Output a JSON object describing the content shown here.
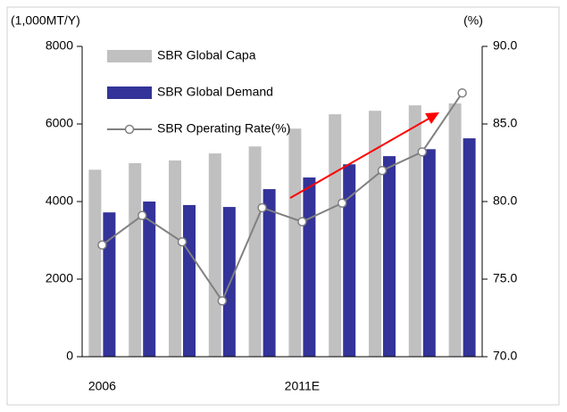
{
  "chart_data": {
    "type": "bar_line",
    "ylabel": "(1,000MT/Y)",
    "y2label": "(%)",
    "categories": [
      "2006",
      null,
      null,
      null,
      null,
      "2011E",
      null,
      null,
      null,
      null
    ],
    "series": [
      {
        "name": "SBR Global Capa",
        "type": "bar",
        "color": "#c0c0c0",
        "values": [
          4820,
          4990,
          5060,
          5240,
          5420,
          5880,
          6250,
          6340,
          6480,
          6530
        ]
      },
      {
        "name": "SBR Global Demand",
        "type": "bar",
        "color": "#333399",
        "values": [
          3720,
          4000,
          3910,
          3860,
          4320,
          4620,
          4960,
          5170,
          5350,
          5630
        ]
      },
      {
        "name": "SBR Operating Rate(%)",
        "type": "line",
        "axis": "y2",
        "color": "#808080",
        "values": [
          77.2,
          79.1,
          77.4,
          73.6,
          79.6,
          78.7,
          79.9,
          82.0,
          83.2,
          87.0
        ]
      }
    ],
    "ylim": [
      0,
      8000
    ],
    "yticks": [
      0,
      2000,
      4000,
      6000,
      8000
    ],
    "y2lim": [
      70,
      90
    ],
    "y2ticks": [
      {
        "value": 70,
        "label": "70.0"
      },
      {
        "value": 75,
        "label": "75.0"
      },
      {
        "value": 80,
        "label": "80.0"
      },
      {
        "value": 85,
        "label": "85.0"
      },
      {
        "value": 90,
        "label": "90.0"
      }
    ]
  }
}
